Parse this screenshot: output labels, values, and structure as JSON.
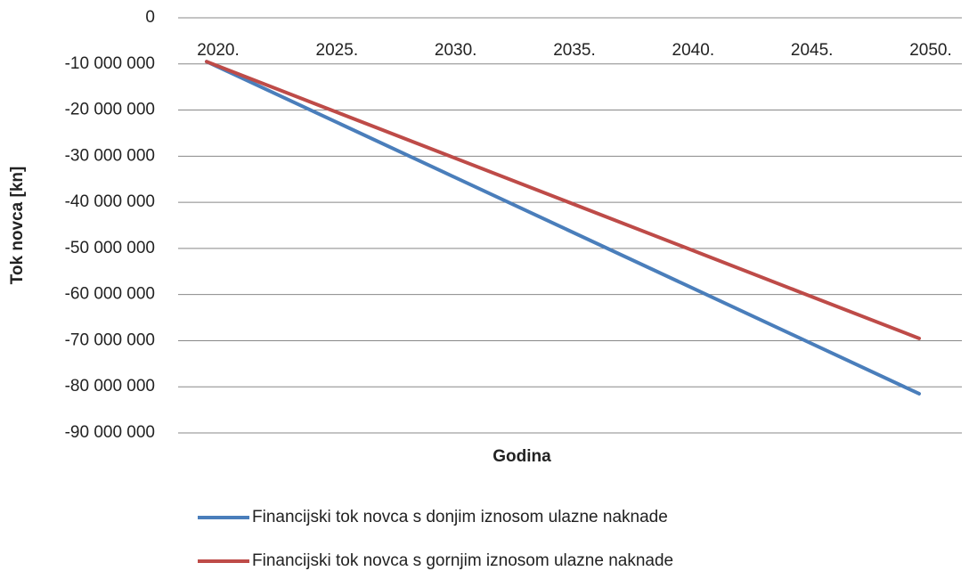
{
  "chart_data": {
    "type": "line",
    "x_label": "Godina",
    "y_label": "Tok novca [kn]",
    "x": [
      2020,
      2025,
      2030,
      2035,
      2040,
      2045,
      2050
    ],
    "xticks": [
      {
        "value": 2020,
        "label": "2020."
      },
      {
        "value": 2025,
        "label": "2025."
      },
      {
        "value": 2030,
        "label": "2030."
      },
      {
        "value": 2035,
        "label": "2035."
      },
      {
        "value": 2040,
        "label": "2040."
      },
      {
        "value": 2045,
        "label": "2045."
      },
      {
        "value": 2050,
        "label": "2050."
      }
    ],
    "xlim": [
      2018.8,
      2051.8
    ],
    "series": [
      {
        "name": "Financijski tok novca s donjim iznosom ulazne naknade",
        "color": "#4a7ebb",
        "values": [
          -9500000,
          -21500000,
          -33500000,
          -45500000,
          -57500000,
          -69500000,
          -81500000
        ]
      },
      {
        "name": "Financijski tok novca s gornjim iznosom ulazne naknade",
        "color": "#be4b48",
        "values": [
          -9500000,
          -19500000,
          -29500000,
          -39500000,
          -49500000,
          -59500000,
          -69500000
        ]
      }
    ],
    "ylim": [
      -90000000,
      0
    ],
    "yticks": [
      0,
      {
        "value": -10000000,
        "label": "-10 000 000"
      },
      {
        "value": -20000000,
        "label": "-20 000 000"
      },
      {
        "value": -30000000,
        "label": "-30 000 000"
      },
      {
        "value": -40000000,
        "label": "-40 000 000"
      },
      {
        "value": -50000000,
        "label": "-50 000 000"
      },
      {
        "value": -60000000,
        "label": "-60 000 000"
      },
      {
        "value": -70000000,
        "label": "-70 000 000"
      },
      {
        "value": -80000000,
        "label": "-80 000 000"
      },
      {
        "value": -90000000,
        "label": "-90 000 000"
      }
    ],
    "grid": true
  }
}
